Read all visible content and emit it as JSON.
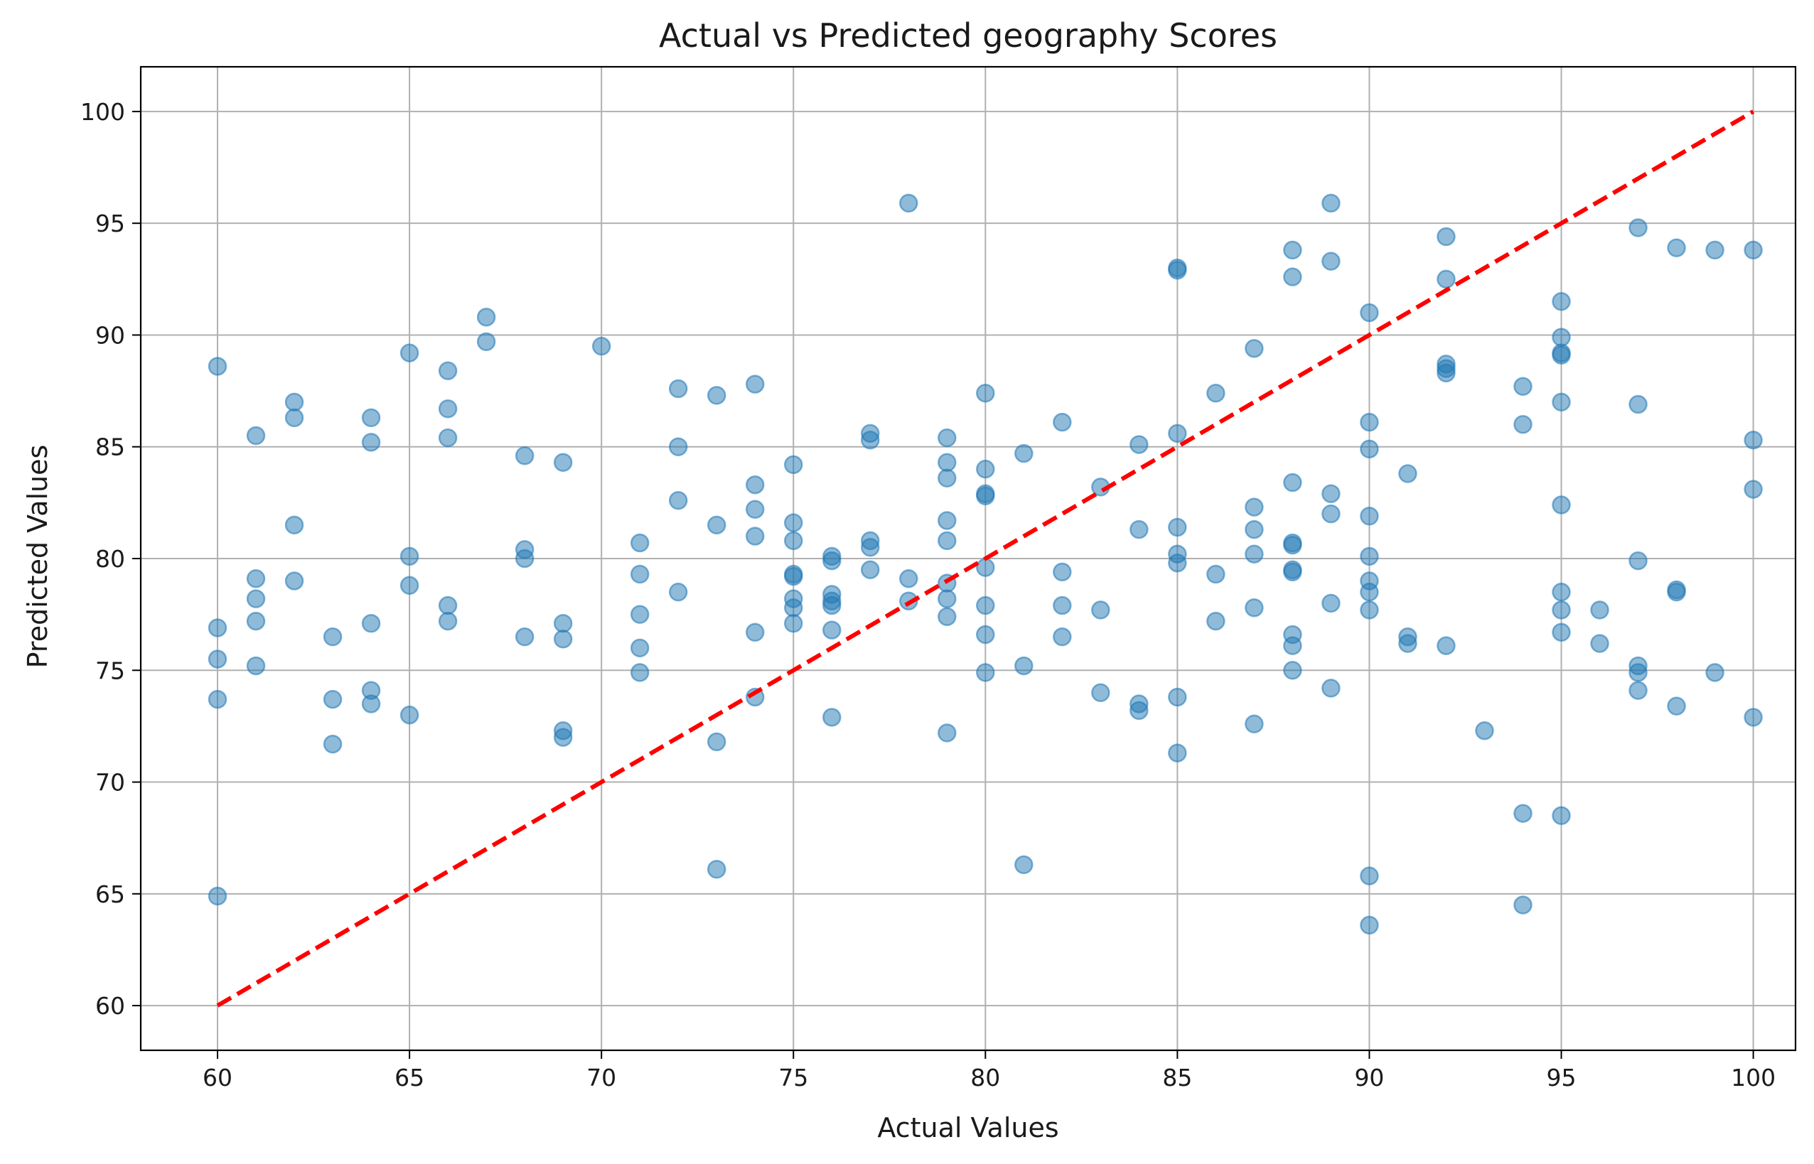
{
  "chart_data": {
    "type": "scatter",
    "title": "Actual vs Predicted geography Scores",
    "xlabel": "Actual Values",
    "ylabel": "Predicted Values",
    "xlim": [
      58,
      101.1
    ],
    "ylim": [
      58,
      102
    ],
    "xticks": [
      60,
      65,
      70,
      75,
      80,
      85,
      90,
      95,
      100
    ],
    "yticks": [
      60,
      65,
      70,
      75,
      80,
      85,
      90,
      95,
      100
    ],
    "grid": true,
    "colors": {
      "points": "#1f77b4",
      "reference_line": "#ff0000",
      "grid": "#b0b0b0"
    },
    "reference_line": {
      "x": [
        60,
        100
      ],
      "y": [
        60,
        100
      ],
      "style": "dashed"
    },
    "points": [
      [
        60,
        88.6
      ],
      [
        60,
        76.9
      ],
      [
        60,
        75.5
      ],
      [
        60,
        73.7
      ],
      [
        60,
        64.9
      ],
      [
        61,
        85.5
      ],
      [
        61,
        79.1
      ],
      [
        61,
        78.2
      ],
      [
        61,
        77.2
      ],
      [
        61,
        75.2
      ],
      [
        62,
        87.0
      ],
      [
        62,
        86.3
      ],
      [
        62,
        81.5
      ],
      [
        62,
        79.0
      ],
      [
        63,
        76.5
      ],
      [
        63,
        73.7
      ],
      [
        63,
        71.7
      ],
      [
        64,
        86.3
      ],
      [
        64,
        85.2
      ],
      [
        64,
        77.1
      ],
      [
        64,
        74.1
      ],
      [
        64,
        73.5
      ],
      [
        65,
        89.2
      ],
      [
        65,
        80.1
      ],
      [
        65,
        78.8
      ],
      [
        65,
        73.0
      ],
      [
        66,
        88.4
      ],
      [
        66,
        86.7
      ],
      [
        66,
        85.4
      ],
      [
        66,
        77.9
      ],
      [
        66,
        77.2
      ],
      [
        67,
        90.8
      ],
      [
        67,
        89.7
      ],
      [
        68,
        84.6
      ],
      [
        68,
        80.4
      ],
      [
        68,
        80.0
      ],
      [
        68,
        76.5
      ],
      [
        69,
        84.3
      ],
      [
        69,
        77.1
      ],
      [
        69,
        76.4
      ],
      [
        69,
        72.3
      ],
      [
        69,
        72.0
      ],
      [
        70,
        89.5
      ],
      [
        71,
        80.7
      ],
      [
        71,
        79.3
      ],
      [
        71,
        77.5
      ],
      [
        71,
        76.0
      ],
      [
        71,
        74.9
      ],
      [
        72,
        87.6
      ],
      [
        72,
        85.0
      ],
      [
        72,
        82.6
      ],
      [
        72,
        78.5
      ],
      [
        73,
        87.3
      ],
      [
        73,
        81.5
      ],
      [
        73,
        71.8
      ],
      [
        73,
        66.1
      ],
      [
        74,
        87.8
      ],
      [
        74,
        83.3
      ],
      [
        74,
        82.2
      ],
      [
        74,
        81.0
      ],
      [
        74,
        76.7
      ],
      [
        74,
        73.8
      ],
      [
        75,
        84.2
      ],
      [
        75,
        81.6
      ],
      [
        75,
        80.8
      ],
      [
        75,
        79.3
      ],
      [
        75,
        79.2
      ],
      [
        75,
        78.2
      ],
      [
        75,
        77.8
      ],
      [
        75,
        77.1
      ],
      [
        76,
        80.1
      ],
      [
        76,
        79.9
      ],
      [
        76,
        78.4
      ],
      [
        76,
        78.1
      ],
      [
        76,
        77.9
      ],
      [
        76,
        76.8
      ],
      [
        76,
        72.9
      ],
      [
        77,
        85.6
      ],
      [
        77,
        85.3
      ],
      [
        77,
        80.8
      ],
      [
        77,
        80.5
      ],
      [
        77,
        79.5
      ],
      [
        78,
        95.9
      ],
      [
        78,
        79.1
      ],
      [
        78,
        78.1
      ],
      [
        79,
        85.4
      ],
      [
        79,
        84.3
      ],
      [
        79,
        83.6
      ],
      [
        79,
        81.7
      ],
      [
        79,
        80.8
      ],
      [
        79,
        78.9
      ],
      [
        79,
        78.2
      ],
      [
        79,
        77.4
      ],
      [
        79,
        72.2
      ],
      [
        80,
        87.4
      ],
      [
        80,
        84.0
      ],
      [
        80,
        82.9
      ],
      [
        80,
        82.8
      ],
      [
        80,
        79.6
      ],
      [
        80,
        77.9
      ],
      [
        80,
        76.6
      ],
      [
        80,
        74.9
      ],
      [
        81,
        84.7
      ],
      [
        81,
        75.2
      ],
      [
        81,
        66.3
      ],
      [
        82,
        86.1
      ],
      [
        82,
        79.4
      ],
      [
        82,
        77.9
      ],
      [
        82,
        76.5
      ],
      [
        83,
        83.2
      ],
      [
        83,
        77.7
      ],
      [
        83,
        74.0
      ],
      [
        84,
        85.1
      ],
      [
        84,
        81.3
      ],
      [
        84,
        73.5
      ],
      [
        84,
        73.2
      ],
      [
        85,
        93.0
      ],
      [
        85,
        92.9
      ],
      [
        85,
        85.6
      ],
      [
        85,
        81.4
      ],
      [
        85,
        80.2
      ],
      [
        85,
        79.8
      ],
      [
        85,
        73.8
      ],
      [
        85,
        71.3
      ],
      [
        86,
        87.4
      ],
      [
        86,
        79.3
      ],
      [
        86,
        77.2
      ],
      [
        87,
        89.4
      ],
      [
        87,
        82.3
      ],
      [
        87,
        81.3
      ],
      [
        87,
        80.2
      ],
      [
        87,
        77.8
      ],
      [
        87,
        72.6
      ],
      [
        88,
        93.8
      ],
      [
        88,
        92.6
      ],
      [
        88,
        83.4
      ],
      [
        88,
        80.7
      ],
      [
        88,
        80.6
      ],
      [
        88,
        79.5
      ],
      [
        88,
        79.4
      ],
      [
        88,
        76.6
      ],
      [
        88,
        76.1
      ],
      [
        88,
        75.0
      ],
      [
        89,
        95.9
      ],
      [
        89,
        93.3
      ],
      [
        89,
        82.9
      ],
      [
        89,
        82.0
      ],
      [
        89,
        78.0
      ],
      [
        89,
        74.2
      ],
      [
        90,
        91.0
      ],
      [
        90,
        86.1
      ],
      [
        90,
        84.9
      ],
      [
        90,
        81.9
      ],
      [
        90,
        80.1
      ],
      [
        90,
        79.0
      ],
      [
        90,
        78.5
      ],
      [
        90,
        77.7
      ],
      [
        90,
        65.8
      ],
      [
        90,
        63.6
      ],
      [
        91,
        83.8
      ],
      [
        91,
        76.5
      ],
      [
        91,
        76.2
      ],
      [
        92,
        94.4
      ],
      [
        92,
        92.5
      ],
      [
        92,
        88.7
      ],
      [
        92,
        88.5
      ],
      [
        92,
        88.3
      ],
      [
        92,
        76.1
      ],
      [
        93,
        72.3
      ],
      [
        94,
        87.7
      ],
      [
        94,
        86.0
      ],
      [
        94,
        68.6
      ],
      [
        94,
        64.5
      ],
      [
        95,
        91.5
      ],
      [
        95,
        89.9
      ],
      [
        95,
        89.2
      ],
      [
        95,
        89.1
      ],
      [
        95,
        87.0
      ],
      [
        95,
        82.4
      ],
      [
        95,
        78.5
      ],
      [
        95,
        77.7
      ],
      [
        95,
        76.7
      ],
      [
        95,
        68.5
      ],
      [
        96,
        77.7
      ],
      [
        96,
        76.2
      ],
      [
        97,
        94.8
      ],
      [
        97,
        86.9
      ],
      [
        97,
        79.9
      ],
      [
        97,
        75.2
      ],
      [
        97,
        74.9
      ],
      [
        97,
        74.1
      ],
      [
        98,
        93.9
      ],
      [
        98,
        78.6
      ],
      [
        98,
        78.5
      ],
      [
        98,
        73.4
      ],
      [
        99,
        93.8
      ],
      [
        99,
        74.9
      ],
      [
        100,
        93.8
      ],
      [
        100,
        85.3
      ],
      [
        100,
        83.1
      ],
      [
        100,
        72.9
      ]
    ]
  }
}
